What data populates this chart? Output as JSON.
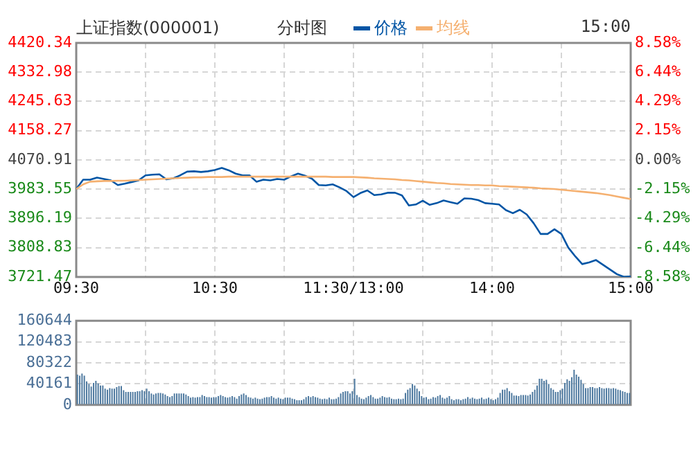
{
  "chart_data": [
    {
      "type": "line",
      "title": "上证指数(000001)",
      "subtitle": "分时图",
      "annotations": [
        "15:00"
      ],
      "legend": "top",
      "grid": true,
      "marker": "none",
      "categories": [
        "09:30",
        null,
        null,
        null,
        null,
        null,
        null,
        null,
        null,
        null,
        null,
        null,
        null,
        null,
        null,
        null,
        null,
        null,
        null,
        null,
        "10:30",
        null,
        null,
        null,
        null,
        null,
        null,
        null,
        null,
        null,
        null,
        null,
        null,
        null,
        null,
        null,
        null,
        null,
        null,
        null,
        "11:30/13:00",
        null,
        null,
        null,
        null,
        null,
        null,
        null,
        null,
        null,
        null,
        null,
        null,
        null,
        null,
        null,
        null,
        null,
        null,
        null,
        "14:00",
        null,
        null,
        null,
        null,
        null,
        null,
        null,
        null,
        null,
        null,
        null,
        null,
        null,
        null,
        null,
        null,
        null,
        null,
        null,
        "15:00"
      ],
      "ylim": [
        3721.47,
        4420.34
      ],
      "yticks": [
        3721.47,
        3808.83,
        3896.19,
        3983.55,
        4070.91,
        4158.27,
        4245.63,
        4332.98,
        4420.34
      ],
      "y2lim": [
        -8.58,
        8.58
      ],
      "y2ticks": [
        {
          "value": -8.58,
          "label": "-8.58%"
        },
        {
          "value": -6.44,
          "label": "-6.44%"
        },
        {
          "value": -4.29,
          "label": "-4.29%"
        },
        {
          "value": -2.15,
          "label": "-2.15%"
        },
        {
          "value": 0,
          "label": "0.00%"
        },
        {
          "value": 2.15,
          "label": "2.15%"
        },
        {
          "value": 4.29,
          "label": "4.29%"
        },
        {
          "value": 6.44,
          "label": "6.44%"
        },
        {
          "value": 8.58,
          "label": "8.58%"
        }
      ],
      "series": [
        {
          "name": "价格",
          "color": "#0055a5",
          "values": [
            3984,
            4012,
            4012,
            4018,
            4014,
            4010,
            3996,
            4000,
            4005,
            4010,
            4025,
            4027,
            4028,
            4013,
            4016,
            4025,
            4036,
            4037,
            4035,
            4037,
            4041,
            4047,
            4040,
            4030,
            4025,
            4025,
            4006,
            4012,
            4010,
            4014,
            4012,
            4022,
            4030,
            4024,
            4015,
            3996,
            3995,
            3998,
            3989,
            3978,
            3960,
            3972,
            3980,
            3966,
            3968,
            3973,
            3973,
            3965,
            3935,
            3938,
            3949,
            3937,
            3942,
            3950,
            3945,
            3940,
            3956,
            3955,
            3951,
            3942,
            3940,
            3938,
            3921,
            3912,
            3922,
            3908,
            3882,
            3850,
            3850,
            3864,
            3850,
            3809,
            3783,
            3760,
            3765,
            3772,
            3758,
            3744,
            3730,
            3722,
            3723
          ]
        },
        {
          "name": "均线",
          "color": "#f5b070",
          "values": [
            3984,
            3998,
            4006,
            4007,
            4008,
            4008,
            4009,
            4009,
            4010,
            4011,
            4012,
            4013,
            4014,
            4015,
            4016,
            4017,
            4018,
            4019,
            4019,
            4020,
            4020,
            4020,
            4021,
            4021,
            4021,
            4021,
            4021,
            4021,
            4021,
            4021,
            4021,
            4021,
            4021,
            4021,
            4021,
            4021,
            4021,
            4020,
            4020,
            4020,
            4020,
            4019,
            4018,
            4016,
            4015,
            4014,
            4013,
            4011,
            4010,
            4008,
            4006,
            4004,
            4002,
            4001,
            3999,
            3998,
            3997,
            3996,
            3996,
            3995,
            3995,
            3993,
            3992,
            3991,
            3990,
            3989,
            3988,
            3986,
            3985,
            3984,
            3982,
            3980,
            3978,
            3976,
            3974,
            3972,
            3969,
            3966,
            3962,
            3958,
            3954
          ]
        }
      ]
    },
    {
      "type": "bar",
      "grid": true,
      "tick_labels": "y",
      "color": "#4f7aa0",
      "categories": [
        null,
        null,
        null,
        null,
        null,
        null,
        null,
        null,
        null,
        null,
        null,
        null,
        null,
        null,
        null,
        null,
        null,
        null,
        null,
        null,
        null,
        null,
        null,
        null,
        null,
        null,
        null,
        null,
        null,
        null,
        null,
        null,
        null,
        null,
        null,
        null,
        null,
        null,
        null,
        null,
        null,
        null,
        null,
        null,
        null,
        null,
        null,
        null,
        null,
        null,
        null,
        null,
        null,
        null,
        null,
        null,
        null,
        null,
        null,
        null,
        null,
        null,
        null,
        null,
        null,
        null,
        null,
        null,
        null,
        null,
        null,
        null,
        null,
        null,
        null,
        null,
        null,
        null,
        null,
        null,
        null,
        null,
        null,
        null,
        null,
        null,
        null,
        null,
        null,
        null,
        null,
        null,
        null,
        null,
        null,
        null,
        null,
        null,
        null,
        null,
        null,
        null,
        null,
        null,
        null,
        null,
        null,
        null,
        null,
        null,
        null,
        null,
        null,
        null,
        null,
        null,
        null,
        null,
        null,
        null,
        null,
        null,
        null,
        null,
        null,
        null,
        null,
        null,
        null,
        null,
        null,
        null,
        null,
        null,
        null,
        null,
        null,
        null,
        null,
        null,
        null,
        null,
        null,
        null,
        null,
        null,
        null,
        null,
        null,
        null,
        null,
        null,
        null,
        null,
        null,
        null,
        null,
        null,
        null,
        null,
        null,
        null,
        null,
        null,
        null,
        null,
        null,
        null,
        null,
        null,
        null,
        null,
        null,
        null,
        null,
        null,
        null,
        null,
        null,
        null,
        null,
        null,
        null,
        null,
        null,
        null,
        null,
        null,
        null,
        null,
        null,
        null,
        null,
        null,
        null,
        null,
        null,
        null,
        null,
        null,
        null,
        null,
        null,
        null,
        null,
        null,
        null,
        null,
        null,
        null,
        null,
        null,
        null,
        null,
        null,
        null,
        null,
        null,
        null,
        null,
        null,
        null,
        null,
        null,
        null,
        null,
        null,
        null,
        null,
        null,
        null,
        null,
        null,
        null,
        null,
        null,
        null,
        null,
        null,
        null
      ],
      "ylim": [
        0,
        160644
      ],
      "yticks": [
        0,
        40161,
        80322,
        120483,
        160644
      ],
      "values": [
        58000,
        56000,
        60000,
        56000,
        45000,
        40000,
        35000,
        42000,
        46000,
        41000,
        37000,
        37000,
        31000,
        29000,
        32000,
        31000,
        31000,
        34000,
        36000,
        36000,
        28000,
        25000,
        25000,
        25000,
        25000,
        25000,
        26000,
        26000,
        28000,
        26000,
        31000,
        26000,
        22000,
        20000,
        22000,
        23000,
        23000,
        22000,
        20000,
        17000,
        15000,
        17000,
        22000,
        22000,
        22000,
        22000,
        22000,
        20000,
        17000,
        14000,
        15000,
        14000,
        15000,
        15000,
        19000,
        17000,
        15000,
        15000,
        14000,
        15000,
        15000,
        17000,
        19000,
        17000,
        15000,
        14000,
        15000,
        17000,
        15000,
        12000,
        17000,
        20000,
        22000,
        19000,
        15000,
        14000,
        12000,
        14000,
        12000,
        11000,
        12000,
        14000,
        15000,
        15000,
        17000,
        14000,
        12000,
        14000,
        12000,
        11000,
        14000,
        14000,
        14000,
        12000,
        11000,
        9000,
        9000,
        9000,
        11000,
        15000,
        17000,
        15000,
        17000,
        15000,
        14000,
        12000,
        11000,
        12000,
        11000,
        14000,
        11000,
        11000,
        12000,
        15000,
        22000,
        25000,
        26000,
        26000,
        22000,
        26000,
        50000,
        19000,
        15000,
        12000,
        11000,
        14000,
        17000,
        19000,
        15000,
        12000,
        12000,
        14000,
        17000,
        15000,
        14000,
        15000,
        12000,
        11000,
        11000,
        12000,
        11000,
        12000,
        23000,
        29000,
        32000,
        40000,
        37000,
        31000,
        26000,
        17000,
        14000,
        15000,
        11000,
        12000,
        15000,
        14000,
        17000,
        19000,
        14000,
        12000,
        14000,
        17000,
        11000,
        9000,
        11000,
        11000,
        9000,
        11000,
        12000,
        15000,
        12000,
        14000,
        12000,
        11000,
        12000,
        14000,
        11000,
        12000,
        14000,
        11000,
        9000,
        11000,
        14000,
        23000,
        29000,
        29000,
        32000,
        26000,
        23000,
        18000,
        18000,
        17000,
        19000,
        19000,
        19000,
        18000,
        20000,
        25000,
        29000,
        37000,
        50000,
        50000,
        46000,
        48000,
        40000,
        32000,
        29000,
        25000,
        25000,
        28000,
        31000,
        42000,
        49000,
        46000,
        53000,
        67000,
        58000,
        54000,
        48000,
        40000,
        32000,
        32000,
        34000,
        34000,
        32000,
        32000,
        34000,
        32000,
        31000,
        32000,
        32000,
        31000,
        32000,
        31000,
        29000,
        28000,
        26000,
        25000,
        23000,
        23000
      ]
    }
  ]
}
